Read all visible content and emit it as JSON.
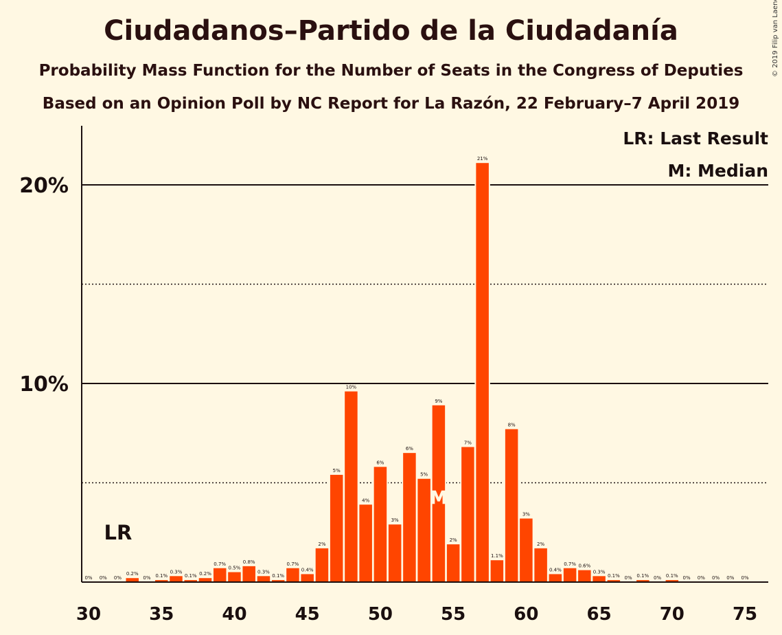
{
  "title": "Ciudadanos–Partido de la Ciudadanía",
  "subtitle1": "Probability Mass Function for the Number of Seats in the Congress of Deputies",
  "subtitle2": "Based on an Opinion Poll by NC Report for La Razón, 22 February–7 April 2019",
  "credit": "© 2019 Filip van Laenen",
  "legend": {
    "last_result": "LR: Last Result",
    "median": "M: Median"
  },
  "markers": {
    "lr_label": "LR",
    "lr_seat": 32,
    "median_label": "M",
    "median_seat": 54
  },
  "colors": {
    "bar": "#ff4500",
    "background": "#fff8e3",
    "text": "#1a0f0f"
  },
  "chart_data": {
    "type": "bar",
    "x": [
      30,
      31,
      32,
      33,
      34,
      35,
      36,
      37,
      38,
      39,
      40,
      41,
      42,
      43,
      44,
      45,
      46,
      47,
      48,
      49,
      50,
      51,
      52,
      53,
      54,
      55,
      56,
      57,
      58,
      59,
      60,
      61,
      62,
      63,
      64,
      65,
      66,
      67,
      68,
      69,
      70,
      71,
      72,
      73,
      74,
      75
    ],
    "values": [
      0,
      0,
      0,
      0.2,
      0,
      0.1,
      0.3,
      0.1,
      0.2,
      0.7,
      0.5,
      0.8,
      0.3,
      0.1,
      0.7,
      0.4,
      1.7,
      5.4,
      9.6,
      3.9,
      5.8,
      2.9,
      6.5,
      5.2,
      8.9,
      1.9,
      6.8,
      21.1,
      1.1,
      7.7,
      3.2,
      1.7,
      0.4,
      0.7,
      0.6,
      0.3,
      0.1,
      0,
      0.1,
      0,
      0.1,
      0,
      0,
      0,
      0,
      0
    ],
    "labels": [
      "0%",
      "0%",
      "0%",
      "0.2%",
      "0%",
      "0.1%",
      "0.3%",
      "0.1%",
      "0.2%",
      "0.7%",
      "0.5%",
      "0.8%",
      "0.3%",
      "0.1%",
      "0.7%",
      "0.4%",
      "2%",
      "5%",
      "10%",
      "4%",
      "6%",
      "3%",
      "6%",
      "5%",
      "9%",
      "2%",
      "7%",
      "21%",
      "1.1%",
      "8%",
      "3%",
      "2%",
      "0.4%",
      "0.7%",
      "0.6%",
      "0.3%",
      "0.1%",
      "0%",
      "0.1%",
      "0%",
      "0.1%",
      "0%",
      "0%",
      "0%",
      "0%",
      "0%"
    ],
    "xticks": [
      "30",
      "35",
      "40",
      "45",
      "50",
      "55",
      "60",
      "65",
      "70",
      "75"
    ],
    "yticks": [
      "10%",
      "20%"
    ],
    "ylim": [
      0,
      23
    ],
    "grid": "solid at 10% and 20%, dotted at 5% and 15%",
    "legend_position": "top-right"
  }
}
